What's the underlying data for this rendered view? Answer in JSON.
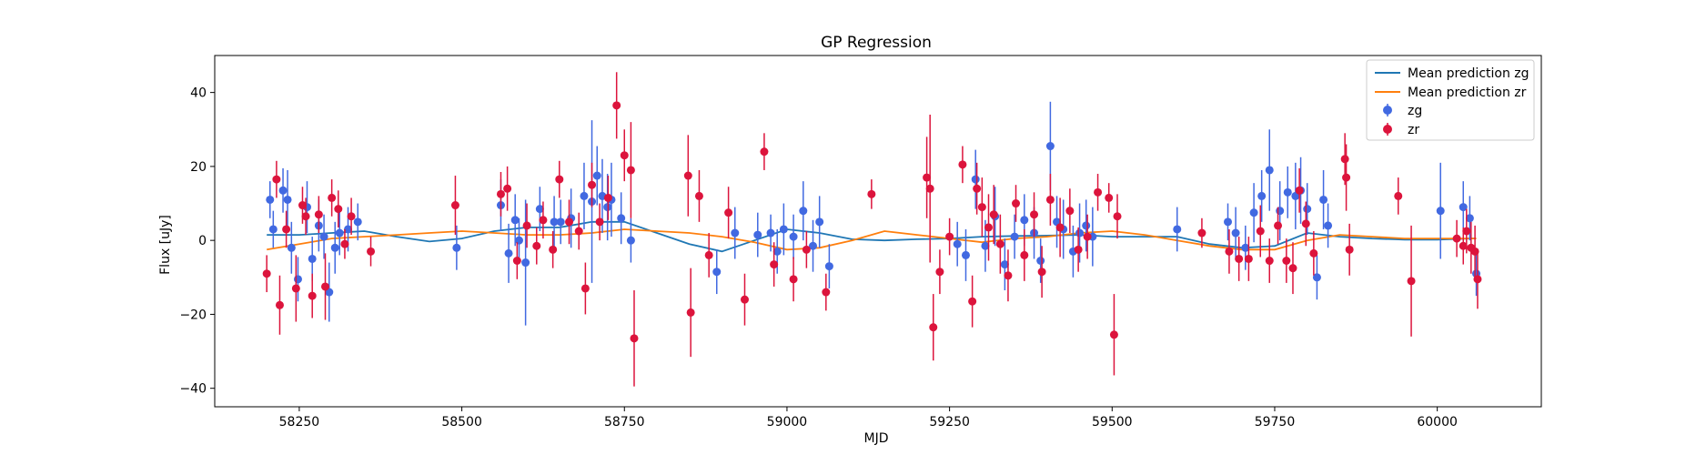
{
  "chart_data": {
    "type": "scatter",
    "title": "GP Regression",
    "xlabel": "MJD",
    "ylabel": "Flux [uJy]",
    "xlim": [
      58120,
      60160
    ],
    "ylim": [
      -45,
      50
    ],
    "x_ticks": [
      58250,
      58500,
      58750,
      59000,
      59250,
      59500,
      59750,
      60000
    ],
    "y_ticks": [
      -40,
      -20,
      0,
      20,
      40
    ],
    "grid": false,
    "legend_position": "top-right",
    "colors": {
      "zg_points": "#4169e1",
      "zr_points": "#dc143c",
      "zg_mean": "#1f77b4",
      "zr_mean": "#ff7f0e"
    },
    "series": [
      {
        "name": "Mean prediction zg",
        "kind": "line",
        "x": [
          58200,
          58250,
          58300,
          58350,
          58400,
          58450,
          58500,
          58550,
          58600,
          58650,
          58700,
          58750,
          58800,
          58850,
          58900,
          58950,
          59000,
          59050,
          59100,
          59150,
          59200,
          59250,
          59300,
          59350,
          59400,
          59450,
          59500,
          59550,
          59600,
          59650,
          59700,
          59750,
          59800,
          59850,
          59900,
          59950,
          60000,
          60050,
          60060
        ],
        "y": [
          1.5,
          1.5,
          2,
          2.5,
          1,
          -0.3,
          0.5,
          2.5,
          3.5,
          3.5,
          5,
          5,
          2,
          -1,
          -3,
          0,
          3,
          2,
          0.3,
          0,
          0.3,
          0.5,
          1,
          1.2,
          1.3,
          1.5,
          1,
          1,
          1,
          -1,
          -2,
          -1.5,
          2,
          1,
          0.5,
          0.2,
          0.2,
          0.5,
          0.5
        ]
      },
      {
        "name": "Mean prediction zr",
        "kind": "line",
        "x": [
          58200,
          58250,
          58300,
          58350,
          58400,
          58450,
          58500,
          58550,
          58600,
          58650,
          58700,
          58750,
          58800,
          58850,
          58900,
          58950,
          59000,
          59050,
          59100,
          59150,
          59200,
          59250,
          59300,
          59350,
          59400,
          59450,
          59500,
          59550,
          59600,
          59650,
          59700,
          59750,
          59800,
          59850,
          59900,
          59950,
          60000,
          60050,
          60060
        ],
        "y": [
          -2.5,
          -1,
          0.5,
          1,
          1.5,
          2,
          2.5,
          2,
          1.5,
          1.5,
          2,
          3,
          2.5,
          2,
          1,
          -0.5,
          -2.5,
          -2,
          0,
          2.5,
          1.5,
          0.5,
          -0.5,
          0.5,
          1,
          2,
          2.5,
          1.5,
          0,
          -1.5,
          -2.5,
          -2.5,
          0,
          1.5,
          1,
          0.5,
          0.5,
          0.5,
          0.5
        ]
      },
      {
        "name": "zg",
        "kind": "errorbar",
        "x": [
          58205,
          58210,
          58225,
          58232,
          58238,
          58248,
          58262,
          58270,
          58280,
          58288,
          58296,
          58305,
          58312,
          58325,
          58340,
          58492,
          58560,
          58572,
          58582,
          58588,
          58598,
          58620,
          58642,
          58652,
          58668,
          58688,
          58700,
          58708,
          58716,
          58724,
          58730,
          58745,
          58760,
          58892,
          58920,
          58955,
          58975,
          58985,
          58995,
          59010,
          59025,
          59040,
          59050,
          59065,
          59262,
          59275,
          59290,
          59305,
          59320,
          59335,
          59350,
          59365,
          59380,
          59390,
          59405,
          59415,
          59425,
          59440,
          59450,
          59460,
          59470,
          59600,
          59678,
          59690,
          59705,
          59718,
          59730,
          59742,
          59758,
          59770,
          59782,
          59790,
          59800,
          59815,
          59825,
          59832,
          60005,
          60040,
          60050,
          60060
        ],
        "y": [
          11,
          3,
          13.5,
          11,
          -2,
          -10.5,
          9,
          -5,
          4,
          1,
          -14,
          -2,
          2,
          3,
          5,
          -2,
          9.5,
          -3.5,
          5.5,
          0,
          -6,
          8.5,
          5,
          5,
          6,
          12,
          10.5,
          17.5,
          12,
          9,
          11,
          6,
          0,
          -8.5,
          2,
          1.5,
          2,
          -3,
          3,
          1,
          8,
          -1.5,
          5,
          -7,
          -1,
          -4,
          16.5,
          -1.5,
          6.5,
          -6.5,
          1,
          5.5,
          2,
          -5.5,
          25.5,
          5,
          3,
          -3,
          2,
          4,
          1,
          3,
          5,
          2,
          -2,
          7.5,
          12,
          19,
          8,
          13,
          12,
          13.5,
          8.5,
          -10,
          11,
          4,
          8,
          9,
          6,
          -9
        ],
        "err": [
          5,
          5,
          6,
          8,
          7,
          6,
          7,
          6,
          7,
          6,
          8,
          7,
          6,
          6,
          5,
          6,
          7,
          8,
          7,
          6,
          17,
          6,
          7,
          6,
          8,
          9,
          22,
          8,
          10,
          9,
          10,
          7,
          6,
          6,
          7,
          6,
          5,
          6,
          7,
          6,
          8,
          7,
          7,
          6,
          6,
          7,
          8,
          7,
          8,
          7,
          6,
          7,
          7,
          6,
          12,
          7,
          8,
          7,
          8,
          7,
          8,
          6,
          5,
          7,
          6,
          8,
          7,
          11,
          8,
          7,
          9,
          9,
          7,
          6,
          8,
          6,
          13,
          7,
          6,
          6
        ]
      },
      {
        "name": "zr",
        "kind": "errorbar",
        "x": [
          58200,
          58215,
          58220,
          58230,
          58245,
          58255,
          58260,
          58270,
          58280,
          58290,
          58300,
          58310,
          58320,
          58330,
          58360,
          58490,
          58560,
          58570,
          58585,
          58600,
          58615,
          58625,
          58640,
          58650,
          58665,
          58680,
          58690,
          58700,
          58712,
          58725,
          58738,
          58750,
          58760,
          58765,
          58848,
          58852,
          58865,
          58880,
          58910,
          58935,
          58965,
          58980,
          59010,
          59030,
          59060,
          59130,
          59215,
          59220,
          59225,
          59235,
          59250,
          59270,
          59285,
          59292,
          59300,
          59310,
          59318,
          59328,
          59340,
          59352,
          59365,
          59380,
          59392,
          59405,
          59420,
          59435,
          59448,
          59462,
          59478,
          59495,
          59503,
          59508,
          59638,
          59680,
          59695,
          59710,
          59728,
          59742,
          59755,
          59768,
          59778,
          59788,
          59798,
          59810,
          59858,
          59860,
          59865,
          59940,
          59960,
          60030,
          60040,
          60045,
          60052,
          60058,
          60062
        ],
        "y": [
          -9,
          16.5,
          -17.5,
          3,
          -13,
          9.5,
          6.5,
          -15,
          7,
          -12.5,
          11.5,
          8.5,
          -1,
          6.5,
          -3,
          9.5,
          12.5,
          14,
          -5.5,
          4,
          -1.5,
          5.5,
          -2.5,
          16.5,
          5,
          2.5,
          -13,
          15,
          5,
          11.5,
          36.5,
          23,
          19,
          -26.5,
          17.5,
          -19.5,
          12,
          -4,
          7.5,
          -16,
          24,
          -6.5,
          -10.5,
          -2.5,
          -14,
          12.5,
          17,
          14,
          -23.5,
          -8.5,
          1,
          20.5,
          -16.5,
          14,
          9,
          3.5,
          7,
          -1,
          -9.5,
          10,
          -4,
          7,
          -8.5,
          11,
          3.5,
          8,
          -2.5,
          1,
          13,
          11.5,
          -25.5,
          6.5,
          2,
          -3,
          -5,
          -5,
          2.5,
          -5.5,
          4,
          -5.5,
          -7.5,
          13.5,
          4.5,
          -3.5,
          22,
          17,
          -2.5,
          12,
          -11,
          0.5,
          -1.5,
          2.5,
          -2,
          -3,
          -10.5
        ],
        "err": [
          5,
          5,
          8,
          5,
          9,
          5,
          5,
          6,
          5,
          9,
          5,
          5,
          4,
          5,
          4,
          8,
          6,
          6,
          5,
          6,
          5,
          5,
          5,
          5,
          6,
          5,
          7,
          6,
          5,
          6,
          9,
          7,
          13,
          13,
          11,
          12,
          7,
          6,
          7,
          7,
          5,
          6,
          6,
          5,
          5,
          4,
          11,
          20,
          9,
          6,
          5,
          5,
          7,
          7,
          8,
          9,
          8,
          8,
          7,
          5,
          7,
          6,
          7,
          7,
          8,
          6,
          6,
          6,
          5,
          4,
          11,
          6,
          4,
          6,
          6,
          6,
          7,
          6,
          5,
          6,
          7,
          6,
          6,
          6,
          7,
          9,
          7,
          5,
          15,
          5,
          5,
          6,
          7,
          7,
          8
        ]
      }
    ]
  }
}
